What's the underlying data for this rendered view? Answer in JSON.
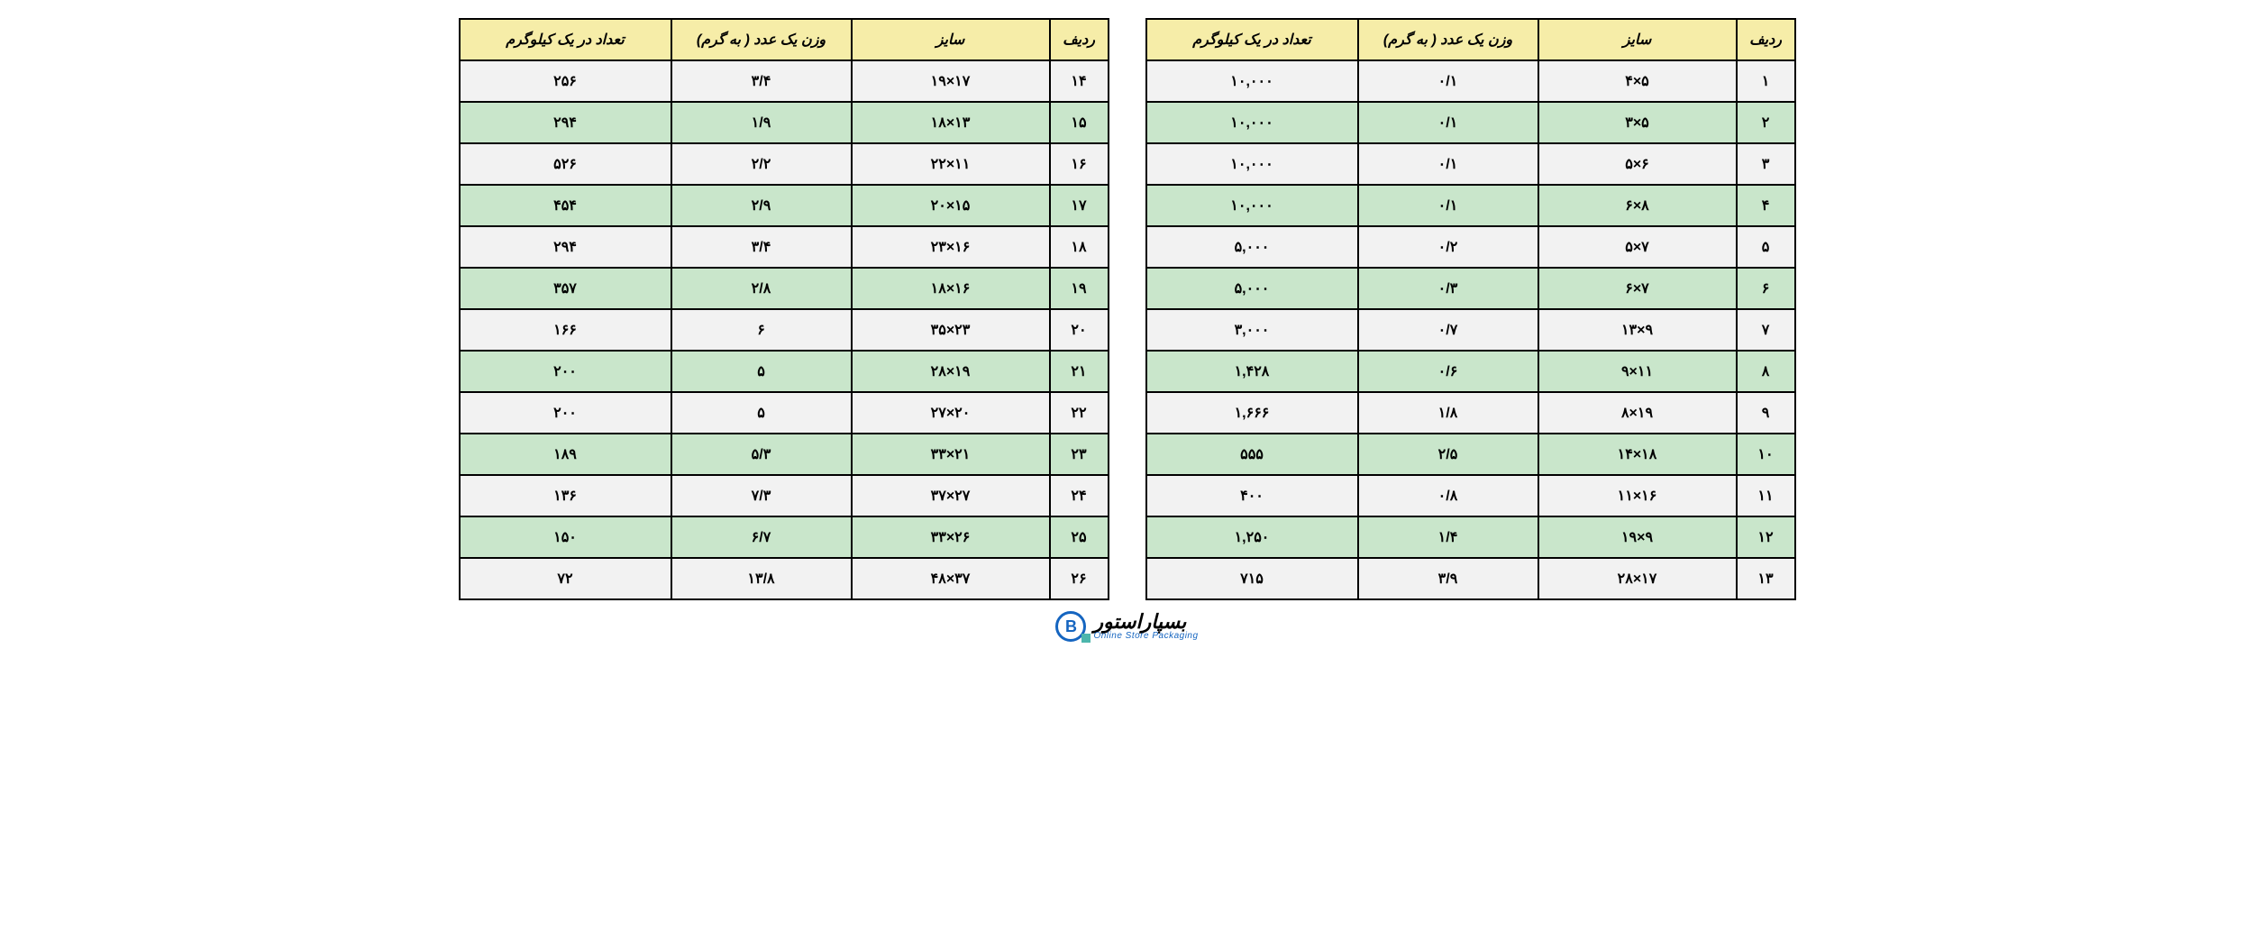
{
  "colors": {
    "header_bg": "#f6eda8",
    "row_even_bg": "#f2f2f2",
    "row_odd_bg": "#c9e6cb",
    "border": "#000000",
    "logo_blue": "#1565c0",
    "logo_teal": "#4db6ac"
  },
  "headers": {
    "row": "ردیف",
    "size": "سایز",
    "weight": "وزن یک عدد ( به گرم)",
    "count": "تعداد در یک کیلوگرم"
  },
  "logo": {
    "mark_letter": "B",
    "fa": "بسپاراستور",
    "en": "Online Store Packaging"
  },
  "table_right": {
    "rows": [
      {
        "row": "۱",
        "size": "۵×۴",
        "weight": "۰/۱",
        "count": "۱۰,۰۰۰"
      },
      {
        "row": "۲",
        "size": "۵×۳",
        "weight": "۰/۱",
        "count": "۱۰,۰۰۰"
      },
      {
        "row": "۳",
        "size": "۶×۵",
        "weight": "۰/۱",
        "count": "۱۰,۰۰۰"
      },
      {
        "row": "۴",
        "size": "۸×۶",
        "weight": "۰/۱",
        "count": "۱۰,۰۰۰"
      },
      {
        "row": "۵",
        "size": "۷×۵",
        "weight": "۰/۲",
        "count": "۵,۰۰۰"
      },
      {
        "row": "۶",
        "size": "۷×۶",
        "weight": "۰/۳",
        "count": "۵,۰۰۰"
      },
      {
        "row": "۷",
        "size": "۹×۱۳",
        "weight": "۰/۷",
        "count": "۳,۰۰۰"
      },
      {
        "row": "۸",
        "size": "۱۱×۹",
        "weight": "۰/۶",
        "count": "۱,۴۲۸"
      },
      {
        "row": "۹",
        "size": "۱۹×۸",
        "weight": "۱/۸",
        "count": "۱,۶۶۶"
      },
      {
        "row": "۱۰",
        "size": "۱۸×۱۴",
        "weight": "۲/۵",
        "count": "۵۵۵"
      },
      {
        "row": "۱۱",
        "size": "۱۶×۱۱",
        "weight": "۰/۸",
        "count": "۴۰۰"
      },
      {
        "row": "۱۲",
        "size": "۹×۱۹",
        "weight": "۱/۴",
        "count": "۱,۲۵۰"
      },
      {
        "row": "۱۳",
        "size": "۱۷×۲۸",
        "weight": "۳/۹",
        "count": "۷۱۵"
      }
    ]
  },
  "table_left": {
    "rows": [
      {
        "row": "۱۴",
        "size": "۱۷×۱۹",
        "weight": "۳/۴",
        "count": "۲۵۶"
      },
      {
        "row": "۱۵",
        "size": "۱۳×۱۸",
        "weight": "۱/۹",
        "count": "۲۹۴"
      },
      {
        "row": "۱۶",
        "size": "۱۱×۲۲",
        "weight": "۲/۲",
        "count": "۵۲۶"
      },
      {
        "row": "۱۷",
        "size": "۱۵×۲۰",
        "weight": "۲/۹",
        "count": "۴۵۴"
      },
      {
        "row": "۱۸",
        "size": "۱۶×۲۳",
        "weight": "۳/۴",
        "count": "۲۹۴"
      },
      {
        "row": "۱۹",
        "size": "۱۶×۱۸",
        "weight": "۲/۸",
        "count": "۳۵۷"
      },
      {
        "row": "۲۰",
        "size": "۲۳×۳۵",
        "weight": "۶",
        "count": "۱۶۶"
      },
      {
        "row": "۲۱",
        "size": "۱۹×۲۸",
        "weight": "۵",
        "count": "۲۰۰"
      },
      {
        "row": "۲۲",
        "size": "۲۰×۲۷",
        "weight": "۵",
        "count": "۲۰۰"
      },
      {
        "row": "۲۳",
        "size": "۲۱×۳۳",
        "weight": "۵/۳",
        "count": "۱۸۹"
      },
      {
        "row": "۲۴",
        "size": "۲۷×۳۷",
        "weight": "۷/۳",
        "count": "۱۳۶"
      },
      {
        "row": "۲۵",
        "size": "۲۶×۳۳",
        "weight": "۶/۷",
        "count": "۱۵۰"
      },
      {
        "row": "۲۶",
        "size": "۳۷×۴۸",
        "weight": "۱۳/۸",
        "count": "۷۲"
      }
    ]
  }
}
